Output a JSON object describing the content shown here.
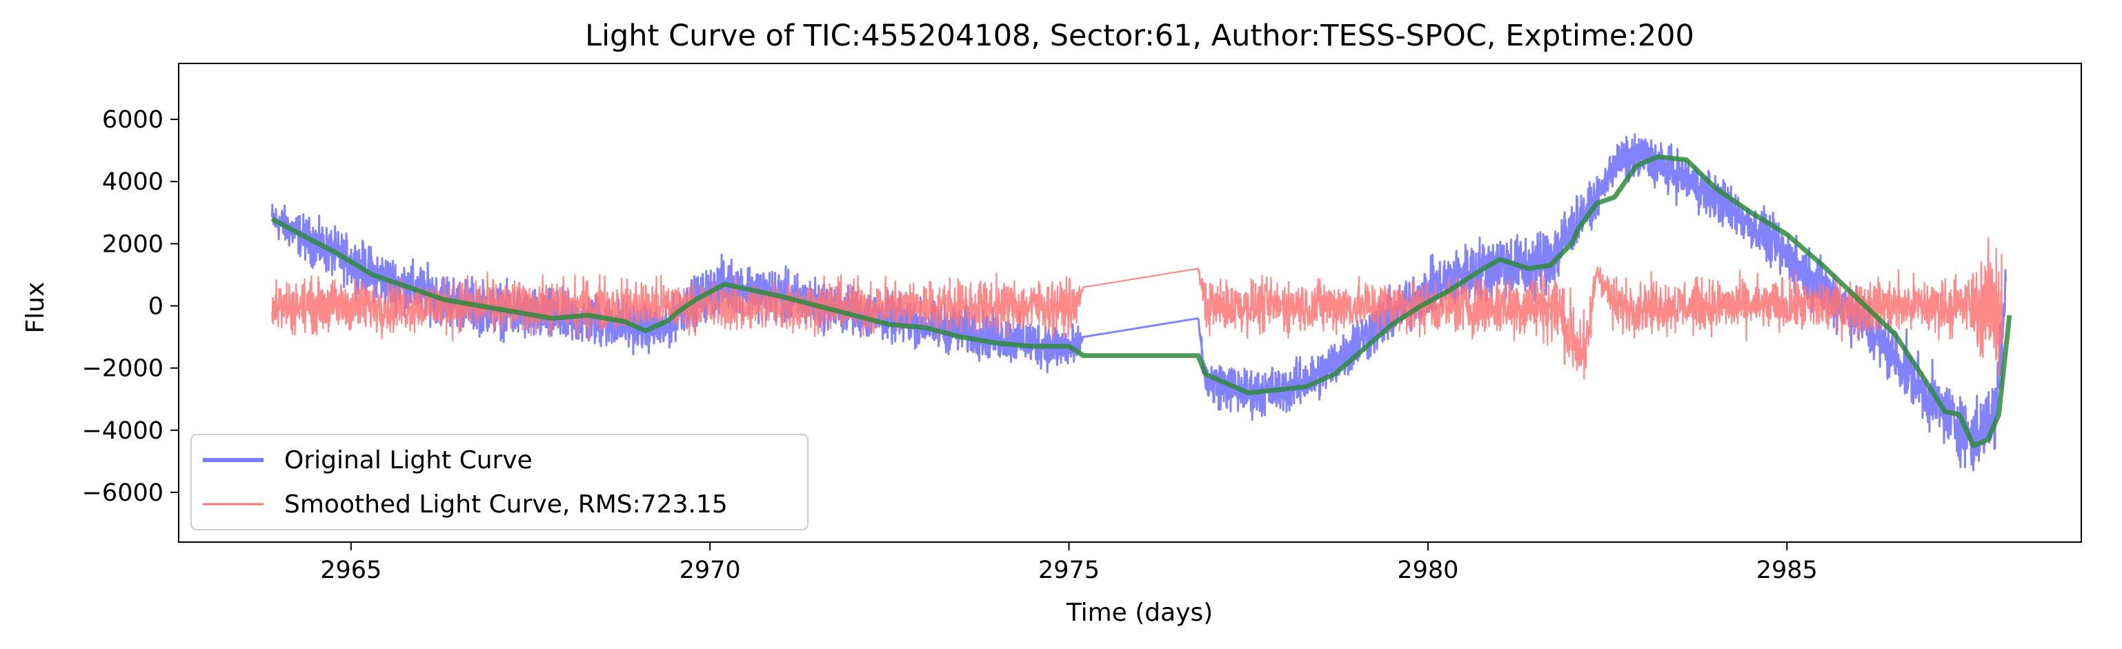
{
  "chart_data": {
    "type": "line",
    "title": "Light Curve of TIC:455204108, Sector:61, Author:TESS-SPOC, Exptime:200",
    "xlabel": "Time (days)",
    "ylabel": "Flux",
    "xlim": [
      2962.6,
      2989.1
    ],
    "ylim": [
      -7600,
      7800
    ],
    "xticks": [
      2965,
      2970,
      2975,
      2980,
      2985
    ],
    "xtick_labels": [
      "2965",
      "2970",
      "2975",
      "2980",
      "2985"
    ],
    "yticks": [
      -6000,
      -4000,
      -2000,
      0,
      2000,
      4000,
      6000
    ],
    "ytick_labels": [
      "−6000",
      "−4000",
      "−2000",
      "0",
      "2000",
      "4000",
      "6000"
    ],
    "grid": false,
    "legend_position": "lower-left",
    "series": [
      {
        "name": "Original Light Curve",
        "color": "#7b7bff",
        "style": "dense-noisy",
        "trend_x": [
          2963.9,
          2964.5,
          2965.5,
          2966.5,
          2967.5,
          2968.5,
          2969.4,
          2969.55,
          2970.2,
          2971.0,
          2972.0,
          2973.0,
          2974.0,
          2975.1,
          2975.2,
          2976.8,
          2976.9,
          2977.5,
          2978.0,
          2978.5,
          2979.0,
          2979.5,
          2980.0,
          2980.5,
          2981.0,
          2981.4,
          2981.8,
          2982.1,
          2982.35,
          2982.6,
          2983.0,
          2983.5,
          2984.0,
          2984.5,
          2985.0,
          2985.5,
          2986.0,
          2986.5,
          2987.0,
          2987.3,
          2987.6,
          2987.9,
          2988.05
        ],
        "trend_y": [
          2800,
          2000,
          800,
          100,
          -300,
          -500,
          -800,
          -200,
          700,
          300,
          -200,
          -600,
          -1000,
          -1400,
          -1000,
          -400,
          -2400,
          -2800,
          -2700,
          -2200,
          -1200,
          -300,
          500,
          1000,
          1400,
          1200,
          1800,
          2800,
          3400,
          4600,
          4800,
          4200,
          3500,
          2600,
          1600,
          600,
          -400,
          -1600,
          -3000,
          -3600,
          -4300,
          -3500,
          1000
        ],
        "noise": [
          600,
          800,
          900,
          900,
          900,
          900,
          700,
          800,
          900,
          900,
          800,
          800,
          800,
          800,
          0,
          0,
          800,
          800,
          800,
          800,
          900,
          900,
          900,
          1000,
          1100,
          1100,
          1200,
          800,
          600,
          700,
          800,
          800,
          800,
          800,
          900,
          1000,
          1000,
          1000,
          1000,
          1100,
          1200,
          1200,
          2000
        ]
      },
      {
        "name": "Smoothed Light Curve, RMS:723.15",
        "color": "#ff7474",
        "style": "dense-noisy",
        "trend_x": [
          2963.9,
          2966.0,
          2968.0,
          2969.4,
          2969.55,
          2972.0,
          2975.1,
          2975.2,
          2976.8,
          2976.9,
          2980.0,
          2981.8,
          2982.0,
          2982.2,
          2982.35,
          2982.6,
          2985.0,
          2987.5,
          2988.0
        ],
        "trend_y": [
          0,
          0,
          0,
          0,
          0,
          0,
          0,
          600,
          1200,
          0,
          0,
          0,
          -1000,
          -1600,
          1200,
          0,
          0,
          0,
          0
        ],
        "noise": [
          900,
          900,
          900,
          900,
          800,
          900,
          900,
          0,
          0,
          900,
          900,
          1200,
          1500,
          1200,
          500,
          900,
          900,
          1000,
          2600
        ]
      },
      {
        "name": "trend",
        "color": "#2e8b3a",
        "style": "smooth",
        "x": [
          2963.9,
          2964.3,
          2964.8,
          2965.3,
          2965.8,
          2966.3,
          2966.8,
          2967.3,
          2967.8,
          2968.3,
          2968.8,
          2969.1,
          2969.4,
          2969.55,
          2969.8,
          2970.2,
          2970.6,
          2971.0,
          2971.5,
          2972.0,
          2972.5,
          2973.0,
          2973.5,
          2974.0,
          2974.5,
          2975.0,
          2975.2,
          2976.8,
          2976.9,
          2977.2,
          2977.5,
          2977.9,
          2978.3,
          2978.7,
          2979.1,
          2979.5,
          2979.9,
          2980.3,
          2980.7,
          2981.0,
          2981.4,
          2981.7,
          2982.0,
          2982.1,
          2982.35,
          2982.6,
          2982.9,
          2983.2,
          2983.6,
          2984.0,
          2984.5,
          2985.0,
          2985.5,
          2986.0,
          2986.5,
          2986.9,
          2987.2,
          2987.4,
          2987.6,
          2987.8,
          2987.95,
          2988.1
        ],
        "y": [
          2800,
          2300,
          1700,
          1000,
          600,
          200,
          0,
          -200,
          -400,
          -300,
          -500,
          -800,
          -500,
          -200,
          200,
          700,
          500,
          300,
          0,
          -300,
          -600,
          -700,
          -1000,
          -1200,
          -1300,
          -1300,
          -1600,
          -1600,
          -2200,
          -2500,
          -2800,
          -2700,
          -2600,
          -2200,
          -1400,
          -600,
          0,
          500,
          1100,
          1500,
          1200,
          1300,
          2000,
          2500,
          3300,
          3500,
          4500,
          4800,
          4700,
          3800,
          3000,
          2300,
          1300,
          200,
          -900,
          -2300,
          -3400,
          -3500,
          -4500,
          -4300,
          -3500,
          -300
        ]
      }
    ]
  }
}
